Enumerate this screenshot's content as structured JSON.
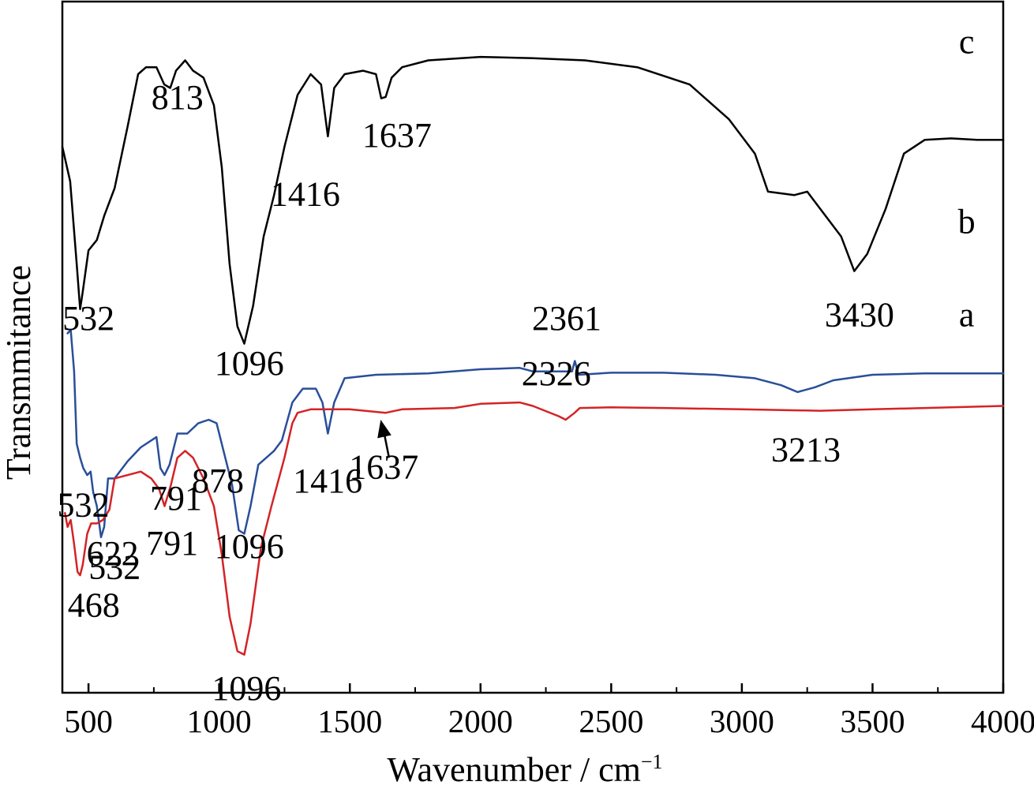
{
  "chart_data": {
    "type": "line",
    "title": "",
    "xlabel": "Wavenumber / cm",
    "xlabel_sup": "−1",
    "ylabel": "Transmmitance",
    "xlim": [
      400,
      4000
    ],
    "xticks": [
      500,
      1000,
      1500,
      2000,
      2500,
      3000,
      3500,
      4000
    ],
    "grid": false,
    "legend": "none",
    "series": [
      {
        "name": "c",
        "color": "#000000",
        "points": [
          [
            400,
            0.79
          ],
          [
            430,
            0.74
          ],
          [
            455,
            0.62
          ],
          [
            468,
            0.555
          ],
          [
            478,
            0.58
          ],
          [
            500,
            0.64
          ],
          [
            532,
            0.655
          ],
          [
            560,
            0.69
          ],
          [
            600,
            0.73
          ],
          [
            650,
            0.82
          ],
          [
            690,
            0.895
          ],
          [
            720,
            0.905
          ],
          [
            760,
            0.905
          ],
          [
            790,
            0.88
          ],
          [
            813,
            0.875
          ],
          [
            835,
            0.9
          ],
          [
            870,
            0.915
          ],
          [
            900,
            0.9
          ],
          [
            940,
            0.89
          ],
          [
            980,
            0.85
          ],
          [
            1010,
            0.76
          ],
          [
            1040,
            0.62
          ],
          [
            1070,
            0.53
          ],
          [
            1096,
            0.505
          ],
          [
            1130,
            0.56
          ],
          [
            1170,
            0.66
          ],
          [
            1210,
            0.72
          ],
          [
            1250,
            0.79
          ],
          [
            1300,
            0.865
          ],
          [
            1350,
            0.895
          ],
          [
            1390,
            0.88
          ],
          [
            1416,
            0.805
          ],
          [
            1440,
            0.875
          ],
          [
            1480,
            0.895
          ],
          [
            1550,
            0.9
          ],
          [
            1600,
            0.895
          ],
          [
            1620,
            0.86
          ],
          [
            1637,
            0.862
          ],
          [
            1660,
            0.89
          ],
          [
            1700,
            0.905
          ],
          [
            1800,
            0.915
          ],
          [
            2000,
            0.92
          ],
          [
            2200,
            0.918
          ],
          [
            2400,
            0.915
          ],
          [
            2600,
            0.905
          ],
          [
            2800,
            0.88
          ],
          [
            2950,
            0.83
          ],
          [
            3050,
            0.78
          ],
          [
            3100,
            0.725
          ],
          [
            3200,
            0.72
          ],
          [
            3250,
            0.725
          ],
          [
            3300,
            0.7
          ],
          [
            3380,
            0.66
          ],
          [
            3430,
            0.61
          ],
          [
            3480,
            0.635
          ],
          [
            3550,
            0.7
          ],
          [
            3620,
            0.78
          ],
          [
            3700,
            0.8
          ],
          [
            3800,
            0.802
          ],
          [
            3900,
            0.8
          ],
          [
            4000,
            0.8
          ]
        ]
      },
      {
        "name": "b",
        "color": "#2a4e9a",
        "points": [
          [
            420,
            0.52
          ],
          [
            432,
            0.525
          ],
          [
            445,
            0.465
          ],
          [
            455,
            0.36
          ],
          [
            468,
            0.34
          ],
          [
            480,
            0.325
          ],
          [
            495,
            0.315
          ],
          [
            508,
            0.32
          ],
          [
            518,
            0.29
          ],
          [
            532,
            0.27
          ],
          [
            548,
            0.225
          ],
          [
            560,
            0.24
          ],
          [
            575,
            0.31
          ],
          [
            600,
            0.31
          ],
          [
            650,
            0.335
          ],
          [
            700,
            0.355
          ],
          [
            760,
            0.37
          ],
          [
            775,
            0.325
          ],
          [
            791,
            0.315
          ],
          [
            810,
            0.33
          ],
          [
            840,
            0.375
          ],
          [
            878,
            0.375
          ],
          [
            920,
            0.39
          ],
          [
            960,
            0.395
          ],
          [
            990,
            0.39
          ],
          [
            1020,
            0.345
          ],
          [
            1050,
            0.3
          ],
          [
            1075,
            0.235
          ],
          [
            1096,
            0.23
          ],
          [
            1120,
            0.27
          ],
          [
            1150,
            0.33
          ],
          [
            1180,
            0.34
          ],
          [
            1210,
            0.35
          ],
          [
            1240,
            0.365
          ],
          [
            1280,
            0.42
          ],
          [
            1320,
            0.44
          ],
          [
            1370,
            0.44
          ],
          [
            1395,
            0.42
          ],
          [
            1416,
            0.375
          ],
          [
            1440,
            0.42
          ],
          [
            1480,
            0.455
          ],
          [
            1600,
            0.46
          ],
          [
            1800,
            0.462
          ],
          [
            2000,
            0.468
          ],
          [
            2150,
            0.47
          ],
          [
            2200,
            0.465
          ],
          [
            2350,
            0.465
          ],
          [
            2361,
            0.48
          ],
          [
            2375,
            0.46
          ],
          [
            2500,
            0.463
          ],
          [
            2700,
            0.463
          ],
          [
            2900,
            0.46
          ],
          [
            3050,
            0.455
          ],
          [
            3150,
            0.445
          ],
          [
            3213,
            0.435
          ],
          [
            3280,
            0.442
          ],
          [
            3350,
            0.452
          ],
          [
            3500,
            0.46
          ],
          [
            3700,
            0.462
          ],
          [
            4000,
            0.462
          ]
        ]
      },
      {
        "name": "a",
        "color": "#d42326",
        "points": [
          [
            410,
            0.26
          ],
          [
            420,
            0.24
          ],
          [
            432,
            0.25
          ],
          [
            445,
            0.215
          ],
          [
            458,
            0.175
          ],
          [
            468,
            0.17
          ],
          [
            478,
            0.185
          ],
          [
            495,
            0.23
          ],
          [
            510,
            0.245
          ],
          [
            532,
            0.245
          ],
          [
            555,
            0.25
          ],
          [
            580,
            0.265
          ],
          [
            600,
            0.31
          ],
          [
            650,
            0.315
          ],
          [
            700,
            0.32
          ],
          [
            740,
            0.31
          ],
          [
            770,
            0.295
          ],
          [
            791,
            0.27
          ],
          [
            815,
            0.3
          ],
          [
            840,
            0.34
          ],
          [
            870,
            0.35
          ],
          [
            900,
            0.34
          ],
          [
            940,
            0.31
          ],
          [
            980,
            0.27
          ],
          [
            1010,
            0.2
          ],
          [
            1040,
            0.11
          ],
          [
            1070,
            0.06
          ],
          [
            1096,
            0.055
          ],
          [
            1120,
            0.1
          ],
          [
            1160,
            0.21
          ],
          [
            1200,
            0.27
          ],
          [
            1250,
            0.34
          ],
          [
            1280,
            0.39
          ],
          [
            1300,
            0.405
          ],
          [
            1350,
            0.41
          ],
          [
            1500,
            0.41
          ],
          [
            1637,
            0.405
          ],
          [
            1700,
            0.41
          ],
          [
            1900,
            0.412
          ],
          [
            2000,
            0.418
          ],
          [
            2150,
            0.42
          ],
          [
            2200,
            0.415
          ],
          [
            2300,
            0.4
          ],
          [
            2326,
            0.395
          ],
          [
            2360,
            0.405
          ],
          [
            2380,
            0.412
          ],
          [
            2500,
            0.413
          ],
          [
            2700,
            0.412
          ],
          [
            3000,
            0.41
          ],
          [
            3300,
            0.408
          ],
          [
            3500,
            0.41
          ],
          [
            3700,
            0.412
          ],
          [
            4000,
            0.415
          ]
        ]
      }
    ],
    "annotations": [
      {
        "text": "c",
        "x": 3860,
        "y": 0.925,
        "role": "series"
      },
      {
        "text": "b",
        "x": 3860,
        "y": 0.665,
        "role": "series"
      },
      {
        "text": "a",
        "x": 3860,
        "y": 0.53,
        "role": "series"
      },
      {
        "text": "532",
        "x": 500,
        "y": 0.525,
        "role": "peak"
      },
      {
        "text": "813",
        "x": 840,
        "y": 0.845,
        "role": "peak"
      },
      {
        "text": "1096",
        "x": 1115,
        "y": 0.46,
        "role": "peak"
      },
      {
        "text": "1416",
        "x": 1330,
        "y": 0.705,
        "role": "peak"
      },
      {
        "text": "1637",
        "x": 1680,
        "y": 0.79,
        "role": "peak"
      },
      {
        "text": "3430",
        "x": 3450,
        "y": 0.53,
        "role": "peak"
      },
      {
        "text": "2361",
        "x": 2330,
        "y": 0.525,
        "role": "peak"
      },
      {
        "text": "532",
        "x": 480,
        "y": 0.255,
        "role": "peak"
      },
      {
        "text": "622",
        "x": 592,
        "y": 0.185,
        "role": "peak"
      },
      {
        "text": "791",
        "x": 835,
        "y": 0.265,
        "role": "peak"
      },
      {
        "text": "878",
        "x": 995,
        "y": 0.29,
        "role": "peak"
      },
      {
        "text": "1096",
        "x": 1115,
        "y": 0.195,
        "role": "peak"
      },
      {
        "text": "1416",
        "x": 1415,
        "y": 0.29,
        "role": "peak"
      },
      {
        "text": "3213",
        "x": 3245,
        "y": 0.335,
        "role": "peak"
      },
      {
        "text": "2326",
        "x": 2290,
        "y": 0.445,
        "role": "peak"
      },
      {
        "text": "1637",
        "x": 1630,
        "y": 0.31,
        "role": "peak"
      },
      {
        "text": "791",
        "x": 820,
        "y": 0.2,
        "role": "peak"
      },
      {
        "text": "532",
        "x": 600,
        "y": 0.165,
        "role": "peak"
      },
      {
        "text": "468",
        "x": 520,
        "y": 0.11,
        "role": "peak"
      },
      {
        "text": "1096",
        "x": 1105,
        "y": -0.01,
        "role": "peak"
      }
    ],
    "arrow": {
      "from": [
        1650,
        0.34
      ],
      "to": [
        1618,
        0.395
      ],
      "color": "#000000"
    }
  }
}
